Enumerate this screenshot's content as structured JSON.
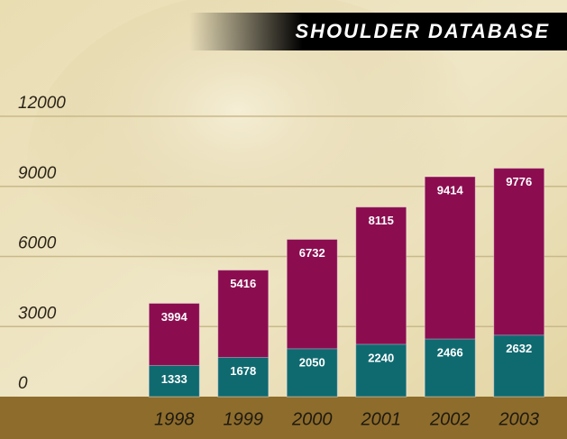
{
  "chart_data": {
    "type": "bar",
    "title": "SHOULDER DATABASE",
    "categories": [
      "1998",
      "1999",
      "2000",
      "2001",
      "2002",
      "2003"
    ],
    "series": [
      {
        "color": "#8b0d50",
        "values": [
          3994,
          5416,
          6732,
          8115,
          9414,
          9776
        ]
      },
      {
        "color": "#0f6a70",
        "values": [
          1333,
          1678,
          2050,
          2240,
          2466,
          2632
        ]
      }
    ],
    "ylim": [
      0,
      12000
    ],
    "yticks": [
      0,
      3000,
      6000,
      9000,
      12000
    ],
    "grid": true
  }
}
